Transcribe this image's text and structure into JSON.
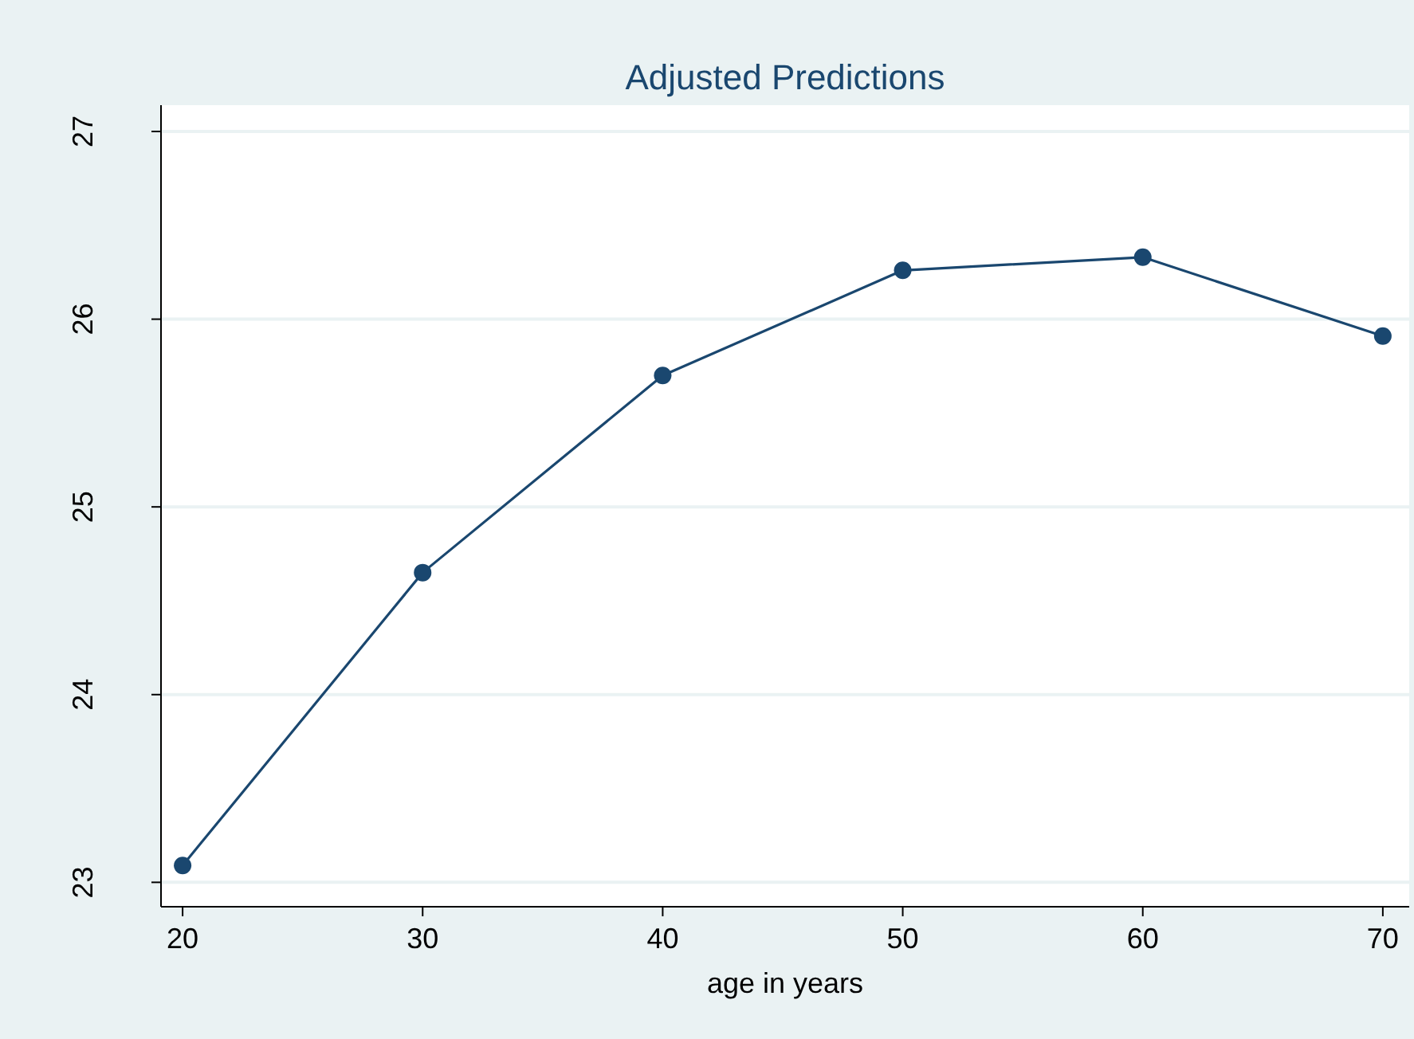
{
  "chart_data": {
    "type": "line",
    "title": "Adjusted Predictions",
    "xlabel": "age in years",
    "x": [
      20,
      30,
      40,
      50,
      60,
      70
    ],
    "series": [
      {
        "color": "#1a476f",
        "values": [
          23.09,
          24.65,
          25.7,
          26.26,
          26.33,
          25.91
        ]
      }
    ],
    "xlim": [
      19.1,
      71.1
    ],
    "xticks": [
      20,
      30,
      40,
      50,
      60,
      70
    ],
    "ylim": [
      22.87,
      27.14
    ],
    "yticks": [
      23,
      24,
      25,
      26,
      27
    ],
    "grid": "y",
    "marker": "circle",
    "line_style": "solid"
  }
}
